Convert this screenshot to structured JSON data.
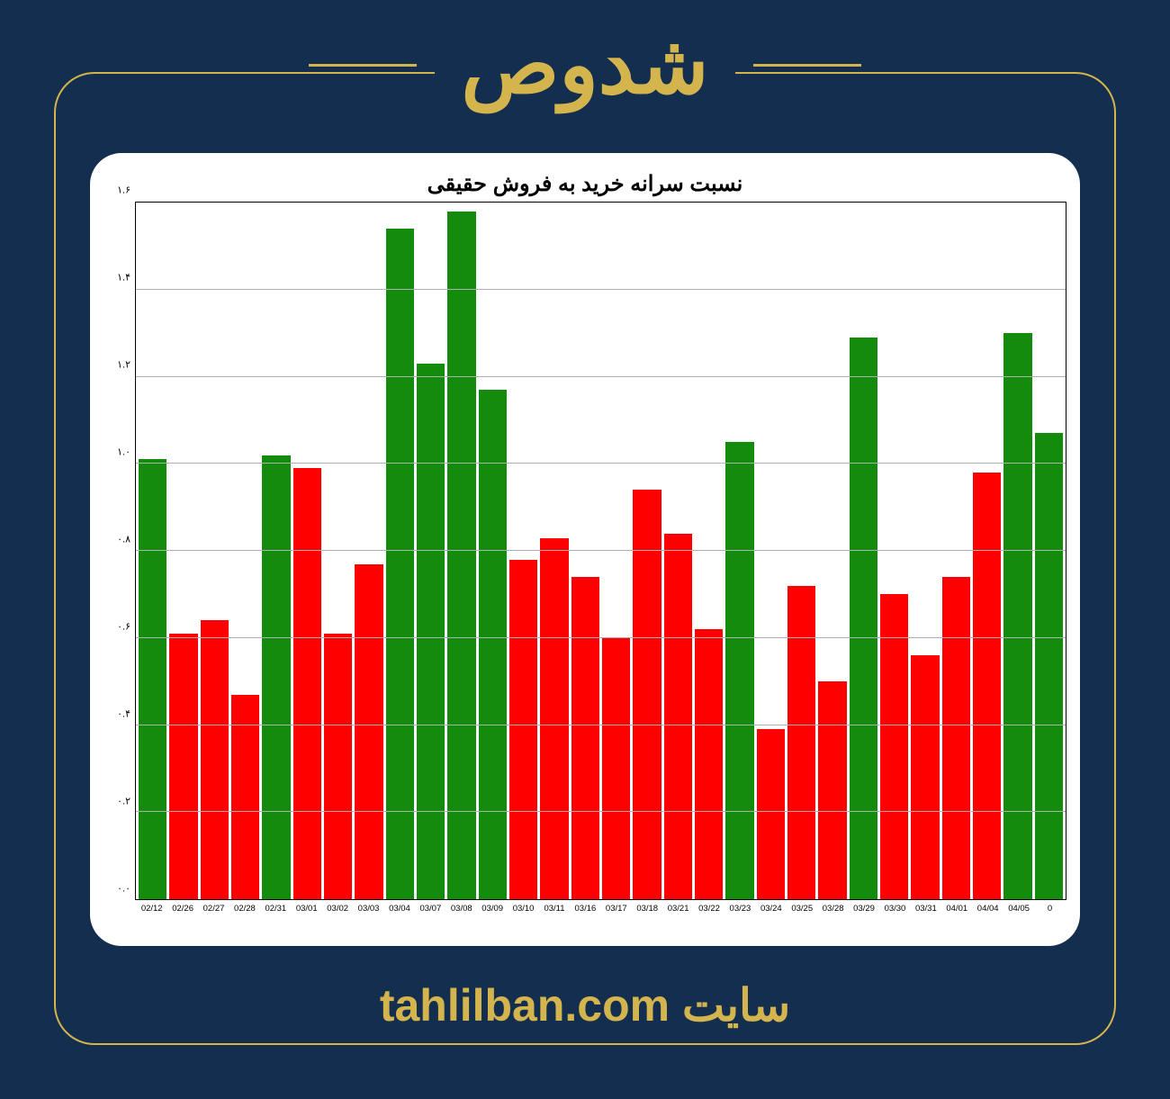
{
  "header": {
    "title": "شدوص"
  },
  "footer": {
    "prefix": "سایت",
    "domain": "tahlilban.com"
  },
  "chart": {
    "type": "bar",
    "title": "نسبت سرانه خرید به فروش حقیقی",
    "title_fontsize": 24,
    "background_color": "#ffffff",
    "grid_color": "#b0b0b0",
    "axis_color": "#000000",
    "ylim": [
      0.0,
      1.6
    ],
    "ytick_step": 0.2,
    "yticks": [
      "۰.۰",
      "۰.۲",
      "۰.۴",
      "۰.۶",
      "۰.۸",
      "۱.۰",
      "۱.۲",
      "۱.۴",
      "۱.۶"
    ],
    "ytick_values": [
      0.0,
      0.2,
      0.4,
      0.6,
      0.8,
      1.0,
      1.2,
      1.4,
      1.6
    ],
    "xtick_fontsize": 9.5,
    "ytick_fontsize": 11,
    "colors": {
      "green": "#138c0d",
      "red": "#ff0000"
    },
    "categories": [
      "02/12",
      "02/26",
      "02/27",
      "02/28",
      "02/31",
      "03/01",
      "03/02",
      "03/03",
      "03/04",
      "03/07",
      "03/08",
      "03/09",
      "03/10",
      "03/11",
      "03/16",
      "03/17",
      "03/18",
      "03/21",
      "03/22",
      "03/23",
      "03/24",
      "03/25",
      "03/28",
      "03/29",
      "03/30",
      "03/31",
      "04/01",
      "04/04",
      "04/05",
      "0"
    ],
    "values": [
      1.01,
      0.61,
      0.64,
      0.47,
      1.02,
      0.99,
      0.61,
      0.77,
      1.54,
      1.23,
      1.58,
      1.17,
      0.78,
      0.83,
      0.74,
      0.6,
      0.94,
      0.84,
      0.62,
      1.05,
      0.39,
      0.72,
      0.5,
      1.29,
      0.7,
      0.56,
      0.74,
      0.98,
      1.3,
      1.07
    ],
    "bar_colors": [
      "green",
      "red",
      "red",
      "red",
      "green",
      "red",
      "red",
      "red",
      "green",
      "green",
      "green",
      "green",
      "red",
      "red",
      "red",
      "red",
      "red",
      "red",
      "red",
      "green",
      "red",
      "red",
      "red",
      "green",
      "red",
      "red",
      "red",
      "red",
      "green",
      "green"
    ]
  },
  "page_colors": {
    "page_bg": "#132e4f",
    "accent": "#d4b44c"
  }
}
